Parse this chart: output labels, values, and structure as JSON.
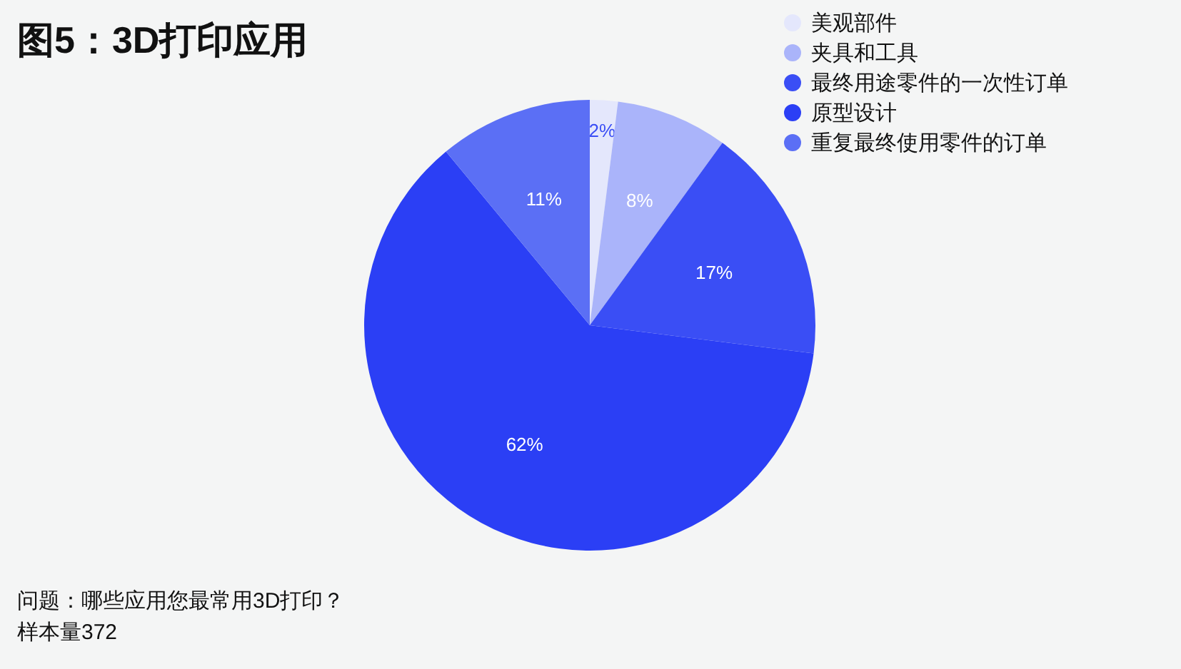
{
  "chart_data": {
    "type": "pie",
    "title": "图5：3D打印应用",
    "categories": [
      "美观部件",
      "夹具和工具",
      "最终用途零件的一次性订单",
      "原型设计",
      "重复最终使用零件的订单"
    ],
    "values": [
      2,
      8,
      17,
      62,
      11
    ],
    "colors": [
      "#e4e7fc",
      "#aab4fa",
      "#3a4ef5",
      "#2b3ff5",
      "#5b6ff5"
    ],
    "value_labels": [
      "2%",
      "8%",
      "17%",
      "62%",
      "11%"
    ],
    "legend": "top right",
    "annotations": [
      "问题：哪些应用您最常用3D打印？",
      "样本量372"
    ]
  }
}
